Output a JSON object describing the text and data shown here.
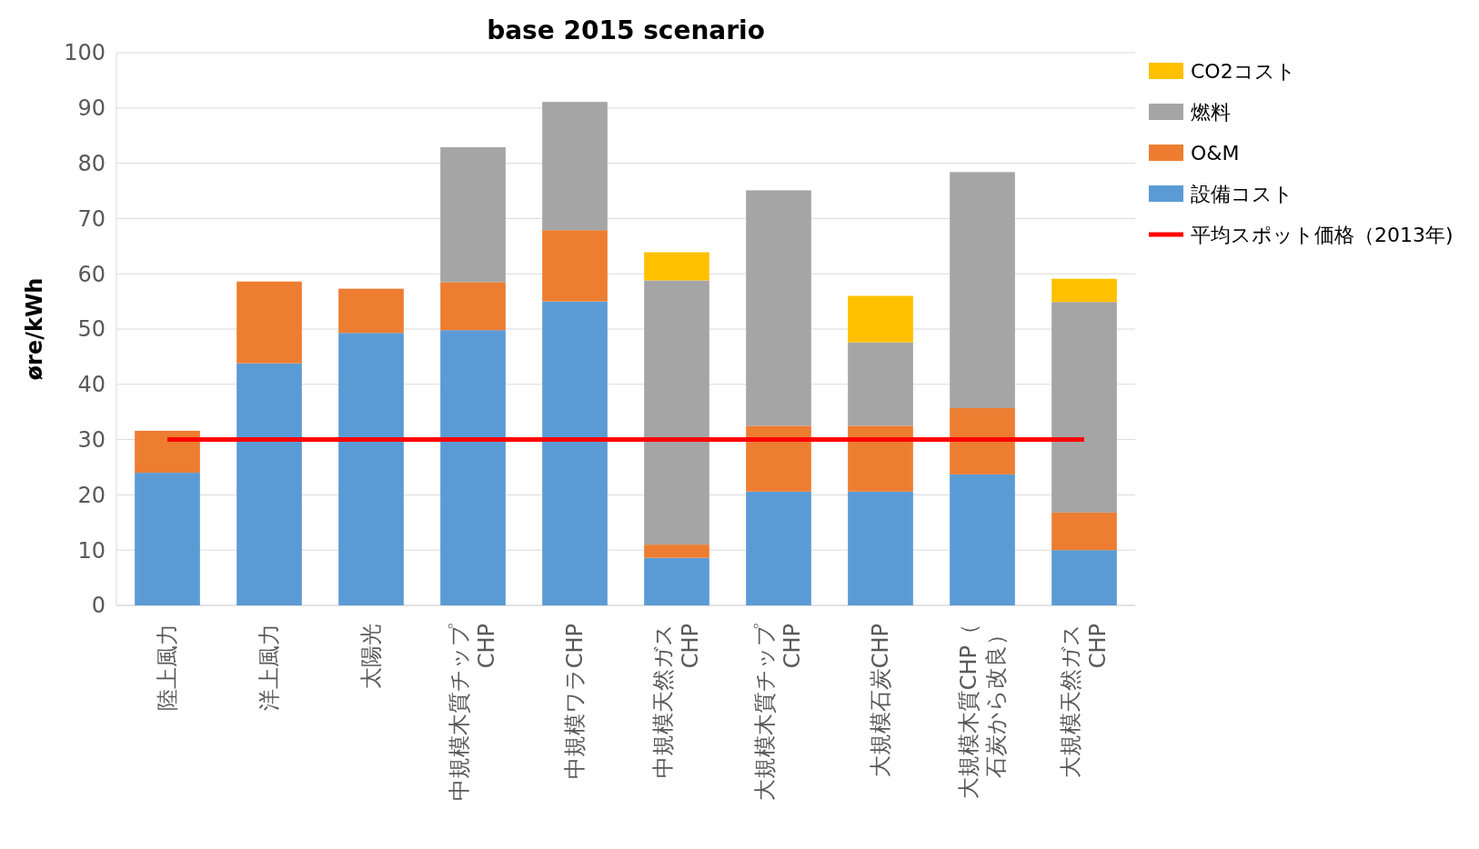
{
  "chart_data": {
    "type": "bar",
    "title": "base 2015 scenario",
    "ylabel": "øre/kWh",
    "stacked": true,
    "categories": [
      "陸上風力",
      "洋上風力",
      "太陽光",
      "中規模木質チップCHP",
      "中規模ワラCHP",
      "中規模天然ガスCHP",
      "大規模木質チップCHP",
      "大規模石炭CHP",
      "大規模木質CHP（石炭から改良）",
      "大規模天然ガスCHP"
    ],
    "series": [
      {
        "name": "設備コスト",
        "color": "#5b9bd5",
        "values": [
          24,
          43.8,
          49.3,
          49.8,
          55,
          8.6,
          20.6,
          20.6,
          23.7,
          10
        ]
      },
      {
        "name": "O&M",
        "color": "#ed7d31",
        "values": [
          7.6,
          14.8,
          8,
          8.7,
          12.9,
          2.4,
          11.9,
          11.9,
          12,
          6.8
        ]
      },
      {
        "name": "燃料",
        "color": "#a5a5a5",
        "values": [
          null,
          null,
          null,
          24.4,
          23.2,
          47.8,
          42.6,
          15.1,
          42.7,
          38.1
        ]
      },
      {
        "name": "CO2コスト",
        "color": "#ffc000",
        "values": [
          null,
          null,
          null,
          null,
          null,
          5.1,
          null,
          8.4,
          null,
          4.2
        ]
      },
      {
        "name": "平均スポット価格（2013年)",
        "type": "line",
        "color": "#ff0000",
        "values": [
          30,
          30,
          30,
          30,
          30,
          30,
          30,
          30,
          30,
          30
        ]
      }
    ],
    "ylim": [
      0,
      100
    ],
    "yticks": [
      0,
      10,
      20,
      30,
      40,
      50,
      60,
      70,
      80,
      90,
      100
    ],
    "grid": "y",
    "legend": "right",
    "marker": "none"
  }
}
